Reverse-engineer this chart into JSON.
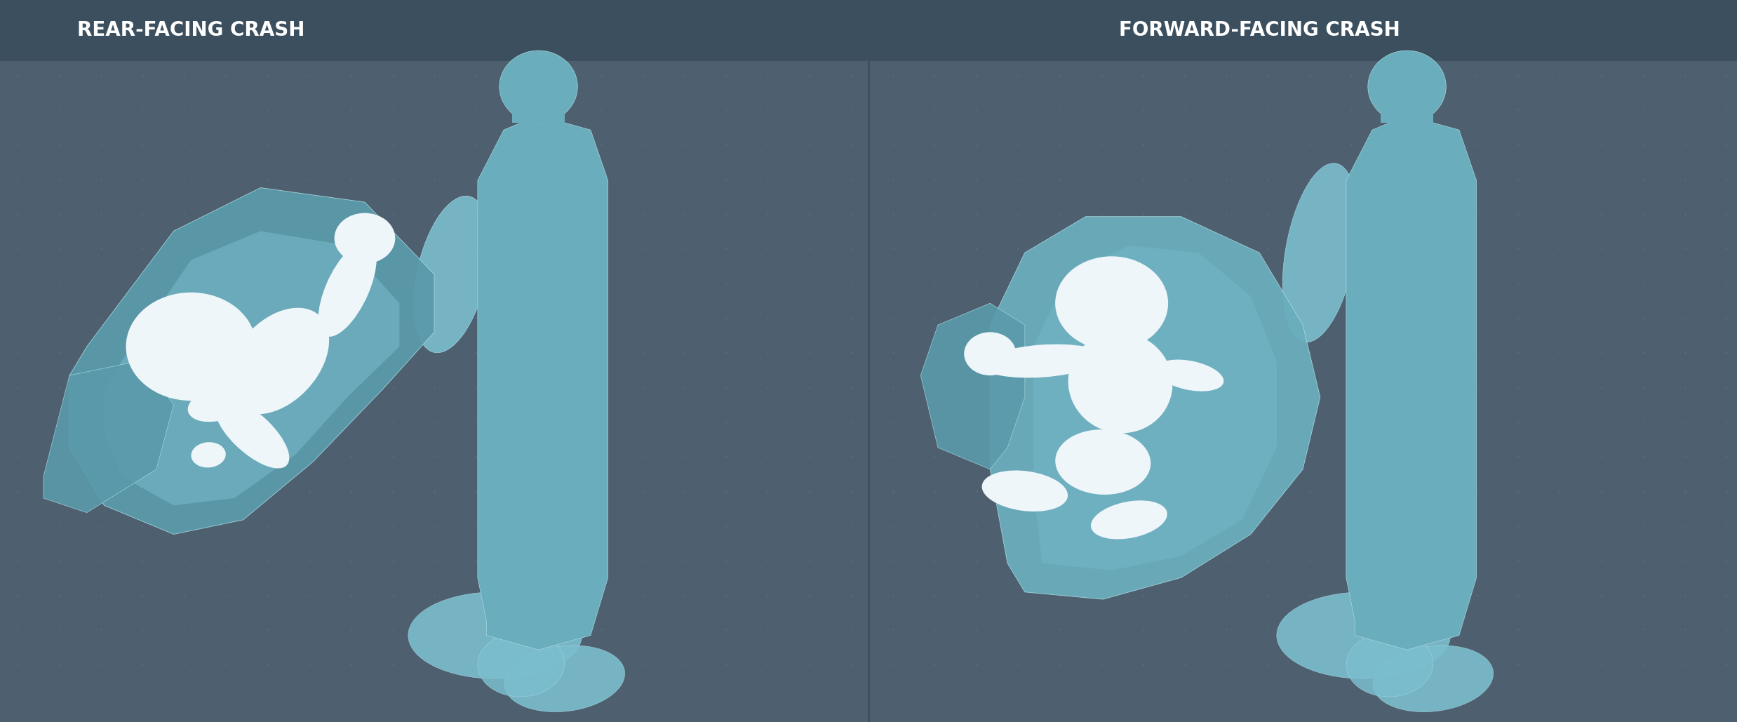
{
  "title_left": "REAR-FACING CRASH",
  "title_right": "FORWARD-FACING CRASH",
  "bg_color": "#4e6070",
  "header_bg_color": "#3b4f5e",
  "seat_color_light": "#7bbece",
  "seat_color_mid": "#6aadbc",
  "seat_color_dark": "#5a9aaa",
  "seat_outline": "#a8d8e0",
  "child_white": "#ddeef5",
  "child_bright": "#eef6fa",
  "dot_color": "#6a8090",
  "text_color": "#ffffff",
  "title_fontsize": 20,
  "fig_width": 24.76,
  "fig_height": 10.29,
  "dpi": 100
}
